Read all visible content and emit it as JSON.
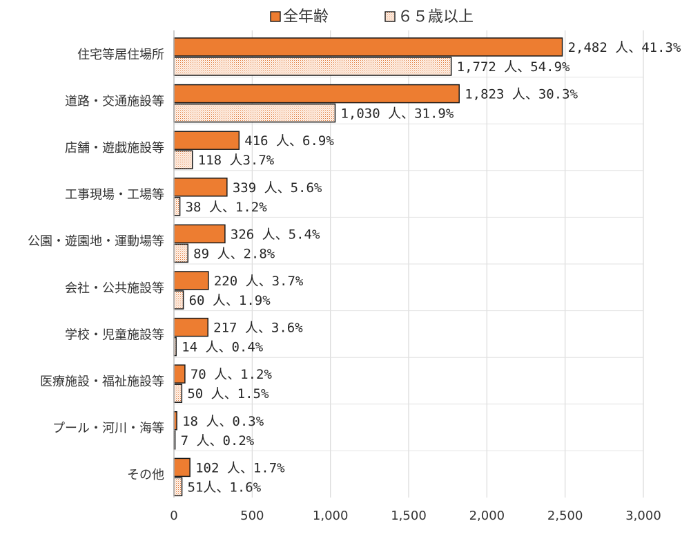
{
  "chart_data": {
    "type": "bar",
    "orientation": "horizontal",
    "categories": [
      "住宅等居住場所",
      "道路・交通施設等",
      "店舗・遊戯施設等",
      "工事現場・工場等",
      "公園・遊園地・運動場等",
      "会社・公共施設等",
      "学校・児童施設等",
      "医療施設・福祉施設等",
      "プール・河川・海等",
      "その他"
    ],
    "series": [
      {
        "name": "全年齢",
        "color": "#ED7D31",
        "pattern": "solid",
        "values": [
          2482,
          1823,
          416,
          339,
          326,
          220,
          217,
          70,
          18,
          102
        ],
        "labels": [
          "2,482 人、41.3%",
          "1,823 人、30.3%",
          "416 人、6.9%",
          "339 人、5.6%",
          "326 人、5.4%",
          "220 人、3.7%",
          "217 人、3.6%",
          "70 人、1.2%",
          "18 人、0.3%",
          "102 人、1.7%"
        ]
      },
      {
        "name": "６５歳以上",
        "color": "#F4B183",
        "pattern": "dotted",
        "values": [
          1772,
          1030,
          118,
          38,
          89,
          60,
          14,
          50,
          7,
          51
        ],
        "labels": [
          "1,772 人、54.9%",
          "1,030 人、31.9%",
          "118 人3.7%",
          "38 人、1.2%",
          "89 人、2.8%",
          "60 人、1.9%",
          "14 人、0.4%",
          "50 人、1.5%",
          "7 人、0.2%",
          "51人、1.6%"
        ]
      }
    ],
    "xlim": [
      0,
      3000
    ],
    "xticks": [
      0,
      500,
      1000,
      1500,
      2000,
      2500,
      3000
    ],
    "xtick_labels": [
      "0",
      "500",
      "1,000",
      "1,500",
      "2,000",
      "2,500",
      "3,000"
    ],
    "grid": "vertical",
    "legend_position": "top-center",
    "title": "",
    "xlabel": "",
    "ylabel": ""
  }
}
